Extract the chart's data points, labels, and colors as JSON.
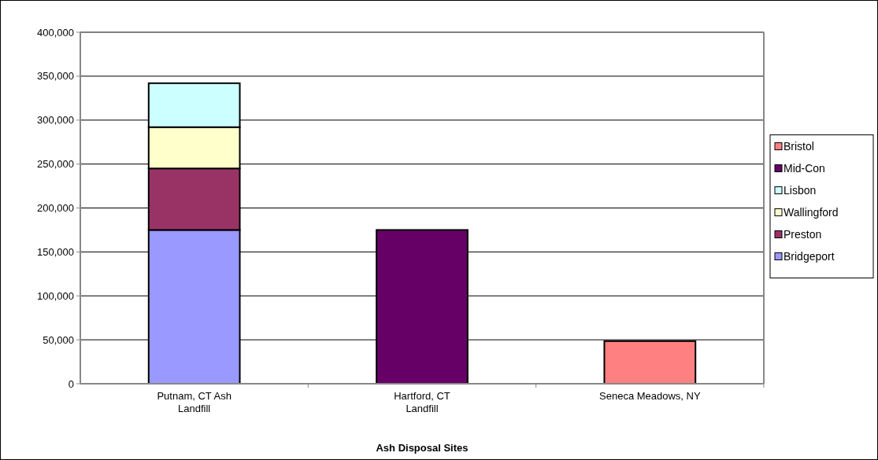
{
  "chart_data": {
    "type": "bar",
    "xlabel": "Ash Disposal Sites",
    "categories": [
      "Putnam, CT Ash Landfill",
      "Hartford, CT Landfill",
      "Seneca Meadows, NY"
    ],
    "stacked": true,
    "series": [
      {
        "name": "Bridgeport",
        "color": "#9999ff",
        "values": [
          175000,
          null,
          null
        ]
      },
      {
        "name": "Preston",
        "color": "#993366",
        "values": [
          70000,
          null,
          null
        ]
      },
      {
        "name": "Wallingford",
        "color": "#ffffcc",
        "values": [
          47000,
          null,
          null
        ]
      },
      {
        "name": "Lisbon",
        "color": "#ccffff",
        "values": [
          50000,
          null,
          null
        ]
      },
      {
        "name": "Mid-Con",
        "color": "#660066",
        "values": [
          null,
          175000,
          null
        ]
      },
      {
        "name": "Bristol",
        "color": "#ff8080",
        "values": [
          null,
          null,
          48500
        ]
      }
    ],
    "ylim": [
      0,
      400000
    ],
    "yticks": [
      {
        "value": 0,
        "label": "0"
      },
      {
        "value": 50000,
        "label": "50,000"
      },
      {
        "value": 100000,
        "label": "100,000"
      },
      {
        "value": 150000,
        "label": "150,000"
      },
      {
        "value": 200000,
        "label": "200,000"
      },
      {
        "value": 250000,
        "label": "250,000"
      },
      {
        "value": 300000,
        "label": "300,000"
      },
      {
        "value": 350000,
        "label": "350,000"
      },
      {
        "value": 400000,
        "label": "400,000"
      }
    ],
    "grid": "y",
    "legend": "right"
  }
}
